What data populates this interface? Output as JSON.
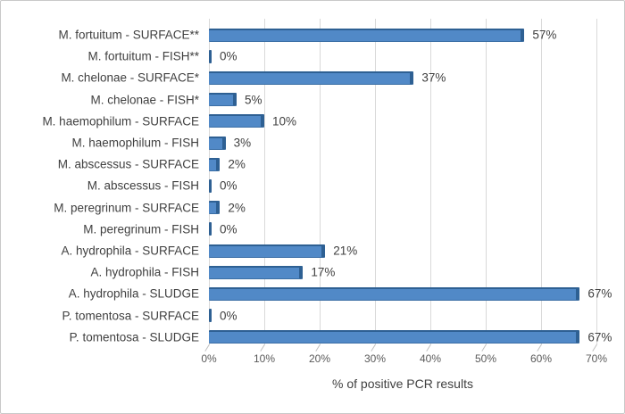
{
  "chart_data": {
    "type": "bar",
    "orientation": "horizontal",
    "title": "",
    "xlabel": "% of positive PCR results",
    "ylabel": "",
    "xlim": [
      0,
      70
    ],
    "grid": "vertical",
    "legend": "none",
    "x_ticks": [
      "0%",
      "10%",
      "20%",
      "30%",
      "40%",
      "50%",
      "60%",
      "70%"
    ],
    "categories": [
      "M. fortuitum - SURFACE**",
      "M. fortuitum - FISH**",
      "M. chelonae - SURFACE*",
      "M. chelonae - FISH*",
      "M. haemophilum - SURFACE",
      "M. haemophilum - FISH",
      "M. abscessus - SURFACE",
      "M. abscessus - FISH",
      "M. peregrinum - SURFACE",
      "M. peregrinum - FISH",
      "A. hydrophila - SURFACE",
      "A. hydrophila - FISH",
      "A. hydrophila - SLUDGE",
      "P. tomentosa - SURFACE",
      "P. tomentosa - SLUDGE"
    ],
    "values": [
      57,
      0,
      37,
      5,
      10,
      3,
      2,
      0,
      2,
      0,
      21,
      17,
      67,
      0,
      67
    ],
    "data_labels": [
      "57%",
      "0%",
      "37%",
      "5%",
      "10%",
      "3%",
      "2%",
      "0%",
      "2%",
      "0%",
      "21%",
      "17%",
      "67%",
      "0%",
      "67%"
    ],
    "colors": {
      "bar_fill": "#5189c7",
      "bar_edge": "#2e6093",
      "gridline": "#d9d9d9",
      "text": "#404040",
      "tick_text": "#595959",
      "frame_border": "#c9c9c9",
      "background": "#ffffff"
    }
  }
}
